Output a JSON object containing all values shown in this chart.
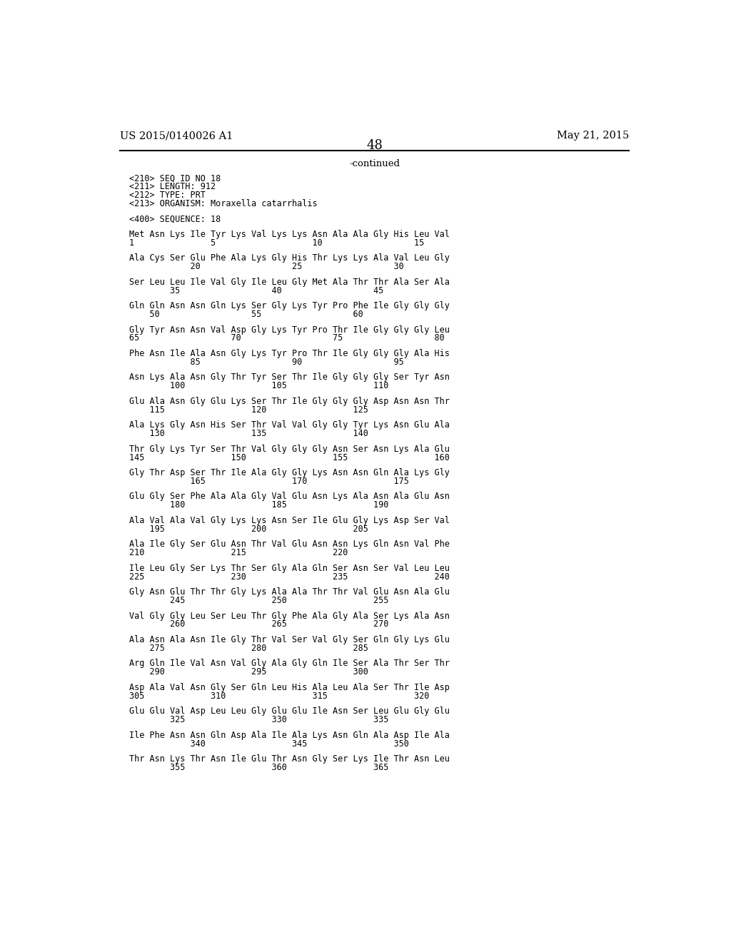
{
  "header_left": "US 2015/0140026 A1",
  "header_right": "May 21, 2015",
  "page_number": "48",
  "continued_text": "-continued",
  "background_color": "#ffffff",
  "text_color": "#000000",
  "seq_info": [
    "<210> SEQ ID NO 18",
    "<211> LENGTH: 912",
    "<212> TYPE: PRT",
    "<213> ORGANISM: Moraxella catarrhalis"
  ],
  "seq_label": "<400> SEQUENCE: 18",
  "sequence_blocks": [
    {
      "aa": "Met Asn Lys Ile Tyr Lys Val Lys Lys Asn Ala Ala Gly His Leu Val",
      "num": "1               5                   10                  15"
    },
    {
      "aa": "Ala Cys Ser Glu Phe Ala Lys Gly His Thr Lys Lys Ala Val Leu Gly",
      "num": "            20                  25                  30"
    },
    {
      "aa": "Ser Leu Leu Ile Val Gly Ile Leu Gly Met Ala Thr Thr Ala Ser Ala",
      "num": "        35                  40                  45"
    },
    {
      "aa": "Gln Gln Asn Asn Gln Lys Ser Gly Lys Tyr Pro Phe Ile Gly Gly Gly",
      "num": "    50                  55                  60"
    },
    {
      "aa": "Gly Tyr Asn Asn Val Asp Gly Lys Tyr Pro Thr Ile Gly Gly Gly Leu",
      "num": "65                  70                  75                  80"
    },
    {
      "aa": "Phe Asn Ile Ala Asn Gly Lys Tyr Pro Thr Ile Gly Gly Gly Ala His",
      "num": "            85                  90                  95"
    },
    {
      "aa": "Asn Lys Ala Asn Gly Thr Tyr Ser Thr Ile Gly Gly Gly Ser Tyr Asn",
      "num": "        100                 105                 110"
    },
    {
      "aa": "Glu Ala Asn Gly Glu Lys Ser Thr Ile Gly Gly Gly Asp Asn Asn Thr",
      "num": "    115                 120                 125"
    },
    {
      "aa": "Ala Lys Gly Asn His Ser Thr Val Val Gly Gly Tyr Lys Asn Glu Ala",
      "num": "    130                 135                 140"
    },
    {
      "aa": "Thr Gly Lys Tyr Ser Thr Val Gly Gly Gly Asn Ser Asn Lys Ala Glu",
      "num": "145                 150                 155                 160"
    },
    {
      "aa": "Gly Thr Asp Ser Thr Ile Ala Gly Gly Lys Asn Asn Gln Ala Lys Gly",
      "num": "            165                 170                 175"
    },
    {
      "aa": "Glu Gly Ser Phe Ala Ala Gly Val Glu Asn Lys Ala Asn Ala Glu Asn",
      "num": "        180                 185                 190"
    },
    {
      "aa": "Ala Val Ala Val Gly Lys Lys Asn Ser Ile Glu Gly Lys Asp Ser Val",
      "num": "    195                 200                 205"
    },
    {
      "aa": "Ala Ile Gly Ser Glu Asn Thr Val Glu Asn Asn Lys Gln Asn Val Phe",
      "num": "210                 215                 220"
    },
    {
      "aa": "Ile Leu Gly Ser Lys Thr Ser Gly Ala Gln Ser Asn Ser Val Leu Leu",
      "num": "225                 230                 235                 240"
    },
    {
      "aa": "Gly Asn Glu Thr Thr Gly Lys Ala Ala Thr Thr Val Glu Asn Ala Glu",
      "num": "        245                 250                 255"
    },
    {
      "aa": "Val Gly Gly Leu Ser Leu Thr Gly Phe Ala Gly Ala Ser Lys Ala Asn",
      "num": "        260                 265                 270"
    },
    {
      "aa": "Ala Asn Ala Asn Ile Gly Thr Val Ser Val Gly Ser Gln Gly Lys Glu",
      "num": "    275                 280                 285"
    },
    {
      "aa": "Arg Gln Ile Val Asn Val Gly Ala Gly Gln Ile Ser Ala Thr Ser Thr",
      "num": "    290                 295                 300"
    },
    {
      "aa": "Asp Ala Val Asn Gly Ser Gln Leu His Ala Leu Ala Ser Thr Ile Asp",
      "num": "305             310                 315                 320"
    },
    {
      "aa": "Glu Glu Val Asp Leu Leu Gly Glu Glu Ile Asn Ser Leu Glu Gly Glu",
      "num": "        325                 330                 335"
    },
    {
      "aa": "Ile Phe Asn Asn Gln Asp Ala Ile Ala Lys Asn Gln Ala Asp Ile Ala",
      "num": "            340                 345                 350"
    },
    {
      "aa": "Thr Asn Lys Thr Asn Ile Glu Thr Asn Gly Ser Lys Ile Thr Asn Leu",
      "num": "        355                 360                 365"
    }
  ]
}
